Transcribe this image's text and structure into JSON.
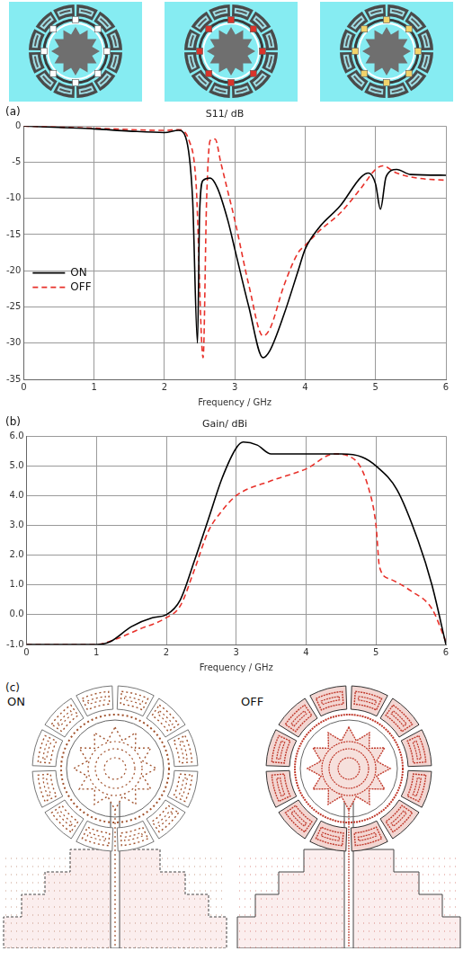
{
  "chart_data": [
    {
      "type": "line",
      "panel": "(a)",
      "title": "S11/ dB",
      "x_label": "Frequency / GHz",
      "xlim": [
        0,
        6
      ],
      "xticks": [
        0,
        1,
        2,
        3,
        4,
        5,
        6
      ],
      "ylim": [
        -35,
        0
      ],
      "yticks": [
        -35,
        -30,
        -25,
        -20,
        -15,
        -10,
        -5,
        0
      ],
      "grid": true,
      "legend": "left",
      "series": [
        {
          "name": "ON",
          "color": "#000000",
          "line_style": "solid",
          "marker": "none",
          "x": [
            0,
            0.5,
            1,
            1.5,
            2,
            2.2,
            2.3,
            2.4,
            2.47,
            2.5,
            2.55,
            2.65,
            2.75,
            2.9,
            3.0,
            3.2,
            3.4,
            3.5,
            3.7,
            3.9,
            4.0,
            4.2,
            4.5,
            4.8,
            4.9,
            5.0,
            5.07,
            5.15,
            5.3,
            5.5,
            6
          ],
          "values": [
            0,
            -0.2,
            -0.4,
            -0.7,
            -0.9,
            -0.6,
            -1.5,
            -10,
            -30,
            -12,
            -7.5,
            -7.2,
            -8.5,
            -13,
            -17,
            -25,
            -32,
            -31,
            -26,
            -20,
            -17,
            -14,
            -11,
            -7,
            -6.5,
            -8,
            -11.5,
            -7,
            -6,
            -6.7,
            -6.8
          ]
        },
        {
          "name": "OFF",
          "color": "#e8312a",
          "line_style": "dashed",
          "marker": "none",
          "x": [
            0,
            1,
            2,
            2.2,
            2.35,
            2.45,
            2.55,
            2.6,
            2.65,
            2.72,
            2.8,
            2.9,
            3.0,
            3.2,
            3.4,
            3.5,
            3.7,
            3.9,
            4.0,
            4.2,
            4.5,
            4.8,
            5.0,
            5.1,
            5.3,
            5.6,
            6
          ],
          "values": [
            0,
            -0.3,
            -0.6,
            -0.5,
            -2,
            -8,
            -32,
            -10,
            -2,
            -1.8,
            -5,
            -9,
            -13,
            -22,
            -29,
            -28,
            -22,
            -17.5,
            -16.5,
            -14.5,
            -12,
            -8.5,
            -6,
            -5.5,
            -6.5,
            -7.2,
            -7.5
          ]
        }
      ]
    },
    {
      "type": "line",
      "panel": "(b)",
      "title": "Gain/ dBi",
      "x_label": "Frequency / GHz",
      "xlim": [
        0,
        6
      ],
      "xticks": [
        0,
        1,
        2,
        3,
        4,
        5,
        6
      ],
      "ylim": [
        -1,
        6
      ],
      "yticks": [
        {
          "value": -1,
          "label": "-1.0"
        },
        {
          "value": 0,
          "label": "0.0"
        },
        {
          "value": 1,
          "label": "1.0"
        },
        {
          "value": 2,
          "label": "2.0"
        },
        {
          "value": 3,
          "label": "3.0"
        },
        {
          "value": 4,
          "label": "4.0"
        },
        {
          "value": 5,
          "label": "5.0"
        },
        {
          "value": 6,
          "label": "6.0"
        }
      ],
      "grid": true,
      "series": [
        {
          "name": "ON",
          "color": "#000000",
          "line_style": "solid",
          "marker": "none",
          "x": [
            0,
            1,
            1.2,
            1.5,
            1.8,
            2,
            2.2,
            2.4,
            2.6,
            2.8,
            3.0,
            3.1,
            3.3,
            3.5,
            4,
            4.5,
            4.8,
            5,
            5.3,
            5.6,
            5.8,
            6
          ],
          "values": [
            -1,
            -1,
            -0.9,
            -0.4,
            -0.1,
            0,
            0.5,
            1.8,
            3.2,
            4.6,
            5.6,
            5.8,
            5.7,
            5.4,
            5.4,
            5.4,
            5.3,
            5.0,
            4.2,
            2.5,
            1.0,
            -1.0
          ]
        },
        {
          "name": "OFF",
          "color": "#e8312a",
          "line_style": "dashed",
          "marker": "none",
          "x": [
            0,
            1,
            1.3,
            1.6,
            2,
            2.2,
            2.4,
            2.6,
            2.8,
            3.0,
            3.5,
            4,
            4.4,
            4.7,
            4.9,
            5.0,
            5.05,
            5.2,
            5.5,
            5.8,
            6
          ],
          "values": [
            -1,
            -1,
            -0.8,
            -0.5,
            -0.1,
            0.3,
            1.5,
            2.8,
            3.5,
            4.0,
            4.5,
            4.9,
            5.4,
            5.2,
            4.2,
            3.0,
            1.6,
            1.2,
            0.8,
            0.2,
            -0.9
          ]
        }
      ]
    }
  ],
  "figure": {
    "panel_c": {
      "panel": "(c)",
      "labels": [
        "ON",
        "OFF"
      ]
    }
  }
}
